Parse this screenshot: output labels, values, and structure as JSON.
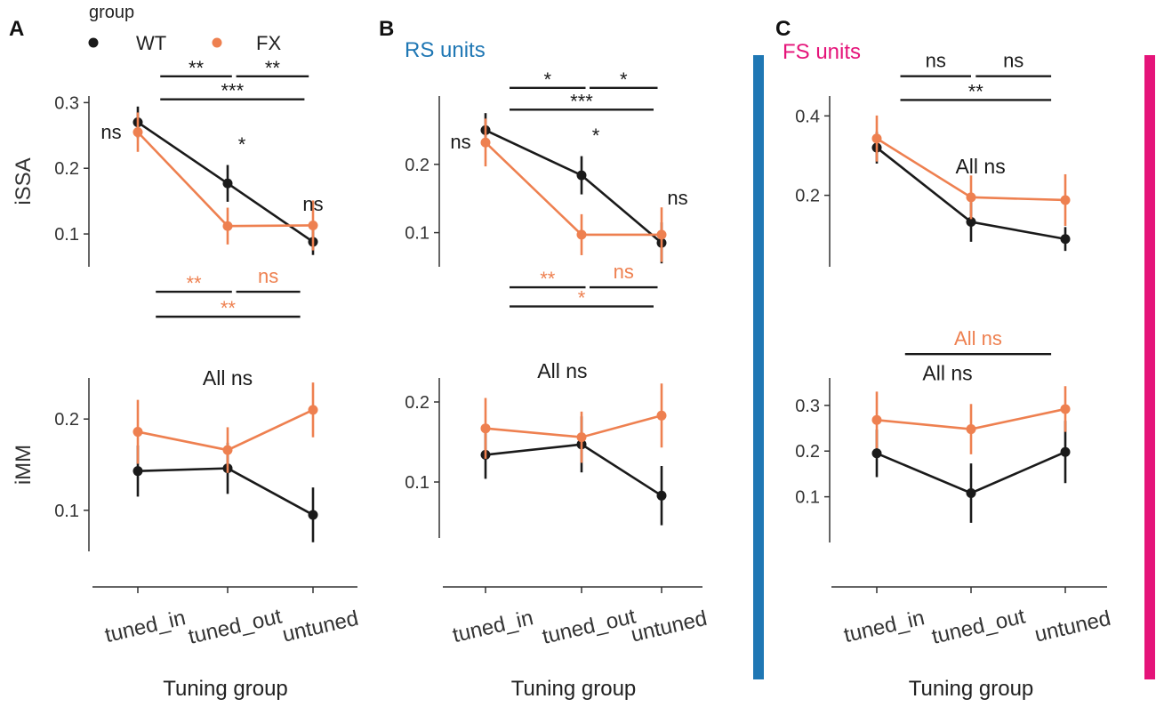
{
  "figure": {
    "colors": {
      "wt": "#1a1a1a",
      "fx": "#ee8050",
      "rs": "#1f77b4",
      "fs": "#e5147a",
      "axis": "#333333"
    },
    "legend": {
      "title": "group",
      "items": [
        {
          "name": "WT",
          "color": "wt"
        },
        {
          "name": "FX",
          "color": "fx"
        }
      ]
    },
    "categories": [
      "tuned_in",
      "tuned_out",
      "untuned"
    ],
    "xlabel": "Tuning group",
    "panels": [
      {
        "letter": "A",
        "subtitle": "",
        "top": {
          "ylabel": "iSSA",
          "ylim": [
            0.05,
            0.31
          ],
          "ticks": [
            {
              "v": 0.1,
              "label": "0.1"
            },
            {
              "v": 0.2,
              "label": "0.2"
            },
            {
              "v": 0.3,
              "label": "0.3"
            }
          ],
          "series": [
            {
              "name": "WT",
              "color": "wt",
              "values": [
                0.27,
                0.177,
                0.088
              ],
              "err": [
                0.024,
                0.028,
                0.02
              ]
            },
            {
              "name": "FX",
              "color": "fx",
              "values": [
                0.255,
                0.112,
                0.113
              ],
              "err": [
                0.03,
                0.028,
                0.038
              ]
            }
          ],
          "point_marks": [
            {
              "text": "ns",
              "color": "wt",
              "cat": 0,
              "v": 0.245,
              "dx": -30
            },
            {
              "text": "*",
              "color": "wt",
              "cat": 1,
              "v": 0.226,
              "dx": 16
            },
            {
              "text": "ns",
              "color": "wt",
              "cat": 2,
              "v": 0.135,
              "dx": 0
            }
          ],
          "brackets": [
            {
              "from": 0.25,
              "to": 1.05,
              "v": 0.34,
              "label": "**",
              "color": "wt"
            },
            {
              "from": 1.1,
              "to": 1.95,
              "v": 0.34,
              "label": "**",
              "color": "wt"
            },
            {
              "from": 0.25,
              "to": 1.9,
              "v": 0.305,
              "label": "***",
              "color": "wt"
            },
            {
              "from": 0.2,
              "to": 1.05,
              "v": 0.012,
              "label": "**",
              "color": "fx"
            },
            {
              "from": 1.1,
              "to": 1.85,
              "v": 0.012,
              "label": "ns",
              "color": "fx"
            },
            {
              "from": 0.2,
              "to": 1.85,
              "v": -0.026,
              "label": "**",
              "color": "fx"
            }
          ],
          "note": null
        },
        "bottom": {
          "ylabel": "iMM",
          "ylim": [
            0.055,
            0.245
          ],
          "ticks": [
            {
              "v": 0.1,
              "label": "0.1"
            },
            {
              "v": 0.2,
              "label": "0.2"
            }
          ],
          "series": [
            {
              "name": "WT",
              "color": "wt",
              "values": [
                0.143,
                0.146,
                0.095
              ],
              "err": [
                0.028,
                0.028,
                0.03
              ]
            },
            {
              "name": "FX",
              "color": "fx",
              "values": [
                0.186,
                0.166,
                0.21
              ],
              "err": [
                0.035,
                0.025,
                0.03
              ]
            }
          ],
          "note": {
            "text": "All ns",
            "color": "wt",
            "cat": 1,
            "v": 0.237
          }
        }
      },
      {
        "letter": "B",
        "subtitle": "RS units",
        "top": {
          "ylabel": "",
          "ylim": [
            0.05,
            0.3
          ],
          "ticks": [
            {
              "v": 0.1,
              "label": "0.1"
            },
            {
              "v": 0.2,
              "label": "0.2"
            }
          ],
          "series": [
            {
              "name": "WT",
              "color": "wt",
              "values": [
                0.25,
                0.184,
                0.085
              ],
              "err": [
                0.025,
                0.028,
                0.03
              ]
            },
            {
              "name": "FX",
              "color": "fx",
              "values": [
                0.232,
                0.097,
                0.097
              ],
              "err": [
                0.035,
                0.03,
                0.04
              ]
            }
          ],
          "point_marks": [
            {
              "text": "ns",
              "color": "wt",
              "cat": 0,
              "v": 0.223,
              "dx": -28
            },
            {
              "text": "*",
              "color": "wt",
              "cat": 1,
              "v": 0.232,
              "dx": 16
            },
            {
              "text": "ns",
              "color": "wt",
              "cat": 2,
              "v": 0.141,
              "dx": 18
            }
          ],
          "brackets": [
            {
              "from": 0.25,
              "to": 1.05,
              "v": 0.312,
              "label": "*",
              "color": "wt"
            },
            {
              "from": 1.1,
              "to": 1.95,
              "v": 0.312,
              "label": "*",
              "color": "wt"
            },
            {
              "from": 0.25,
              "to": 1.9,
              "v": 0.28,
              "label": "***",
              "color": "wt"
            },
            {
              "from": 0.25,
              "to": 1.05,
              "v": 0.02,
              "label": "**",
              "color": "fx"
            },
            {
              "from": 1.1,
              "to": 1.95,
              "v": 0.02,
              "label": "ns",
              "color": "fx"
            },
            {
              "from": 0.25,
              "to": 1.9,
              "v": -0.008,
              "label": "*",
              "color": "fx"
            }
          ],
          "note": null
        },
        "bottom": {
          "ylabel": "",
          "ylim": [
            0.03,
            0.23
          ],
          "ticks": [
            {
              "v": 0.1,
              "label": "0.1"
            },
            {
              "v": 0.2,
              "label": "0.2"
            }
          ],
          "series": [
            {
              "name": "WT",
              "color": "wt",
              "values": [
                0.134,
                0.147,
                0.083
              ],
              "err": [
                0.03,
                0.035,
                0.037
              ]
            },
            {
              "name": "FX",
              "color": "fx",
              "values": [
                0.167,
                0.156,
                0.183
              ],
              "err": [
                0.038,
                0.032,
                0.04
              ]
            }
          ],
          "note": {
            "text": "All ns",
            "color": "wt",
            "cat": 0.8,
            "v": 0.23
          }
        }
      },
      {
        "letter": "C",
        "subtitle": "FS units",
        "top": {
          "ylabel": "",
          "ylim": [
            0.02,
            0.45
          ],
          "ticks": [
            {
              "v": 0.2,
              "label": "0.2"
            },
            {
              "v": 0.4,
              "label": "0.4"
            }
          ],
          "series": [
            {
              "name": "WT",
              "color": "wt",
              "values": [
                0.32,
                0.133,
                0.09
              ],
              "err": [
                0.04,
                0.05,
                0.03
              ]
            },
            {
              "name": "FX",
              "color": "fx",
              "values": [
                0.343,
                0.195,
                0.188
              ],
              "err": [
                0.058,
                0.055,
                0.065
              ]
            }
          ],
          "point_marks": [],
          "brackets": [
            {
              "from": 0.25,
              "to": 1.0,
              "v": 0.5,
              "label": "ns",
              "color": "wt"
            },
            {
              "from": 1.05,
              "to": 1.85,
              "v": 0.5,
              "label": "ns",
              "color": "wt"
            },
            {
              "from": 0.25,
              "to": 1.85,
              "v": 0.44,
              "label": "**",
              "color": "wt"
            },
            {
              "from": 0.3,
              "to": 1.85,
              "v": -0.2,
              "label": "All ns",
              "color": "fx"
            }
          ],
          "note": {
            "text": "All ns",
            "color": "wt",
            "cat": 1.1,
            "v": 0.255
          }
        },
        "bottom": {
          "ylabel": "",
          "ylim": [
            0.0,
            0.36
          ],
          "ticks": [
            {
              "v": 0.1,
              "label": "0.1"
            },
            {
              "v": 0.2,
              "label": "0.2"
            },
            {
              "v": 0.3,
              "label": "0.3"
            }
          ],
          "series": [
            {
              "name": "WT",
              "color": "wt",
              "values": [
                0.195,
                0.108,
                0.198
              ],
              "err": [
                0.052,
                0.065,
                0.068
              ]
            },
            {
              "name": "FX",
              "color": "fx",
              "values": [
                0.268,
                0.248,
                0.292
              ],
              "err": [
                0.062,
                0.055,
                0.05
              ]
            }
          ],
          "note": {
            "text": "All ns",
            "color": "wt",
            "cat": 0.75,
            "v": 0.355
          }
        }
      }
    ]
  },
  "chart_data": [
    {
      "type": "line",
      "panel": "A",
      "title": "",
      "xlabel": "Tuning group",
      "ylabel": "iSSA",
      "categories": [
        "tuned_in",
        "tuned_out",
        "untuned"
      ],
      "series": [
        {
          "name": "WT",
          "values": [
            0.27,
            0.177,
            0.088
          ]
        },
        {
          "name": "FX",
          "values": [
            0.255,
            0.112,
            0.113
          ]
        }
      ],
      "ylim": [
        0.05,
        0.31
      ]
    },
    {
      "type": "line",
      "panel": "A",
      "title": "",
      "xlabel": "Tuning group",
      "ylabel": "iMM",
      "categories": [
        "tuned_in",
        "tuned_out",
        "untuned"
      ],
      "series": [
        {
          "name": "WT",
          "values": [
            0.143,
            0.146,
            0.095
          ]
        },
        {
          "name": "FX",
          "values": [
            0.186,
            0.166,
            0.21
          ]
        }
      ],
      "ylim": [
        0.055,
        0.245
      ]
    },
    {
      "type": "line",
      "panel": "B",
      "title": "RS units",
      "xlabel": "Tuning group",
      "ylabel": "iSSA",
      "categories": [
        "tuned_in",
        "tuned_out",
        "untuned"
      ],
      "series": [
        {
          "name": "WT",
          "values": [
            0.25,
            0.184,
            0.085
          ]
        },
        {
          "name": "FX",
          "values": [
            0.232,
            0.097,
            0.097
          ]
        }
      ],
      "ylim": [
        0.05,
        0.3
      ]
    },
    {
      "type": "line",
      "panel": "B",
      "title": "RS units",
      "xlabel": "Tuning group",
      "ylabel": "iMM",
      "categories": [
        "tuned_in",
        "tuned_out",
        "untuned"
      ],
      "series": [
        {
          "name": "WT",
          "values": [
            0.134,
            0.147,
            0.083
          ]
        },
        {
          "name": "FX",
          "values": [
            0.167,
            0.156,
            0.183
          ]
        }
      ],
      "ylim": [
        0.03,
        0.23
      ]
    },
    {
      "type": "line",
      "panel": "C",
      "title": "FS units",
      "xlabel": "Tuning group",
      "ylabel": "iSSA",
      "categories": [
        "tuned_in",
        "tuned_out",
        "untuned"
      ],
      "series": [
        {
          "name": "WT",
          "values": [
            0.32,
            0.133,
            0.09
          ]
        },
        {
          "name": "FX",
          "values": [
            0.343,
            0.195,
            0.188
          ]
        }
      ],
      "ylim": [
        0.02,
        0.45
      ]
    },
    {
      "type": "line",
      "panel": "C",
      "title": "FS units",
      "xlabel": "Tuning group",
      "ylabel": "iMM",
      "categories": [
        "tuned_in",
        "tuned_out",
        "untuned"
      ],
      "series": [
        {
          "name": "WT",
          "values": [
            0.195,
            0.108,
            0.198
          ]
        },
        {
          "name": "FX",
          "values": [
            0.268,
            0.248,
            0.292
          ]
        }
      ],
      "ylim": [
        0.0,
        0.36
      ]
    }
  ]
}
